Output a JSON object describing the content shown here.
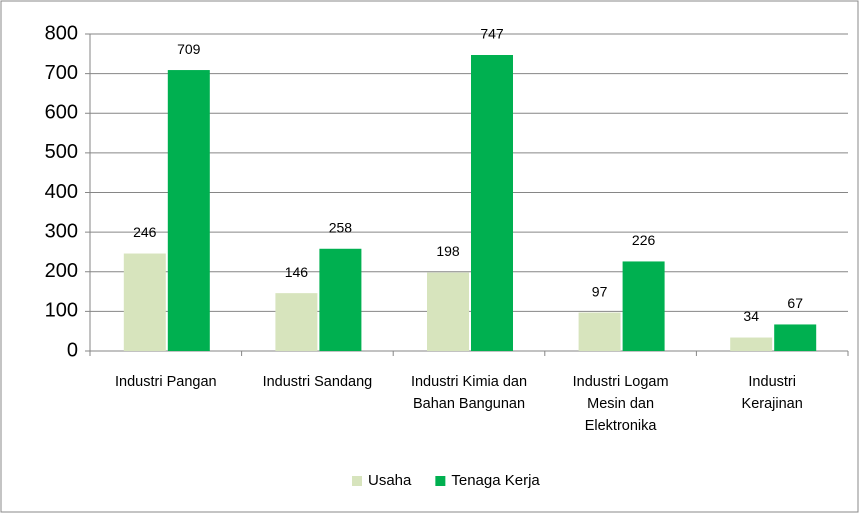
{
  "chart_data": {
    "type": "bar",
    "categories": [
      "Industri Pangan",
      "Industri Sandang",
      "Industri Kimia dan Bahan Bangunan",
      "Industri Logam Mesin dan Elektronika",
      "Industri Kerajinan"
    ],
    "series": [
      {
        "name": "Usaha",
        "color": "#d7e4bd",
        "values": [
          246,
          146,
          198,
          97,
          34
        ]
      },
      {
        "name": "Tenaga Kerja",
        "color": "#00b050",
        "values": [
          709,
          258,
          747,
          226,
          67
        ]
      }
    ],
    "ylim": [
      0,
      800
    ],
    "yticks": [
      0,
      100,
      200,
      300,
      400,
      500,
      600,
      700,
      800
    ],
    "grid": true,
    "legend": "bottom"
  }
}
